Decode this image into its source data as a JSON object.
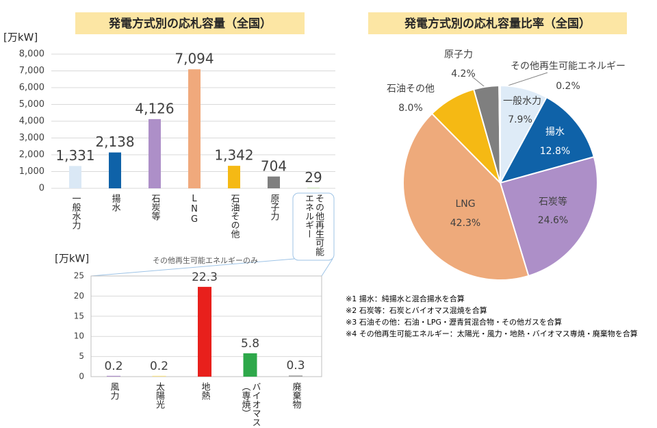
{
  "chart_data": [
    {
      "type": "bar",
      "title": "発電方式別の応札容量（全国）",
      "y_label": "[万kW]",
      "categories": [
        "一般水力",
        "揚水",
        "石炭等",
        "LNG",
        "石油その他",
        "原子力",
        "その他再生可能エネルギー"
      ],
      "values": [
        1331,
        2138,
        4126,
        7094,
        1342,
        704,
        29
      ],
      "value_labels": [
        "1,331",
        "2,138",
        "4,126",
        "7,094",
        "1,342",
        "704",
        "29"
      ],
      "colors": [
        "#dae8f5",
        "#0f62a8",
        "#ad8fc8",
        "#f0a97c",
        "#f5b914",
        "#7f7f7f",
        "#b5d89a"
      ],
      "ylim": [
        0,
        8000
      ],
      "yticks": [
        0,
        {
          "value": 1000,
          "label": "1,000"
        },
        {
          "value": 2000,
          "label": "2,000"
        },
        {
          "value": 3000,
          "label": "3,000"
        },
        {
          "value": 4000,
          "label": "4,000"
        },
        {
          "value": 5000,
          "label": "5,000"
        },
        {
          "value": 6000,
          "label": "6,000"
        },
        {
          "value": 7000,
          "label": "7,000"
        },
        {
          "value": 8000,
          "label": "8,000"
        }
      ],
      "grid": true
    },
    {
      "type": "pie",
      "title": "発電方式別の応札容量比率（全国）",
      "categories": [
        "一般水力",
        "揚水",
        "石炭等",
        "LNG",
        "石油その他",
        "原子力",
        "その他再生可能エネルギー"
      ],
      "values": [
        7.9,
        12.8,
        24.6,
        42.3,
        8.0,
        4.2,
        0.2
      ],
      "value_labels": [
        "7.9%",
        "12.8%",
        "24.6%",
        "42.3%",
        "8.0%",
        "4.2%",
        "0.2%"
      ],
      "colors": [
        "#deebf7",
        "#0f62a8",
        "#ad8fc8",
        "#eeaa7b",
        "#f5b914",
        "#7f7f7f",
        "#b5d89a"
      ]
    },
    {
      "type": "bar",
      "title": "その他再生可能エネルギーのみ",
      "y_label": "[万kW]",
      "categories": [
        "風力",
        "太陽光",
        "地熱",
        "バイオマス（専焼）",
        "廃棄物"
      ],
      "values": [
        0.2,
        0.2,
        22.3,
        5.8,
        0.3
      ],
      "colors": [
        "#ad8fc8",
        "#f5e08a",
        "#e8201c",
        "#2ea84a",
        "#a6a6a6"
      ],
      "ylim": [
        0,
        25
      ],
      "yticks": [
        0,
        5,
        10,
        15,
        20,
        25
      ],
      "grid": true
    }
  ],
  "notes": [
    "※1 揚水：純揚水と混合揚水を合算",
    "※2 石炭等：石炭とバイオマス混焼を合算",
    "※3 石油その他：石油・LPG・瀝青質混合物・その他ガスを合算",
    "※4 その他再生可能エネルギー：太陽光・風力・地熱・バイオマス専焼・廃棄物を合算"
  ]
}
